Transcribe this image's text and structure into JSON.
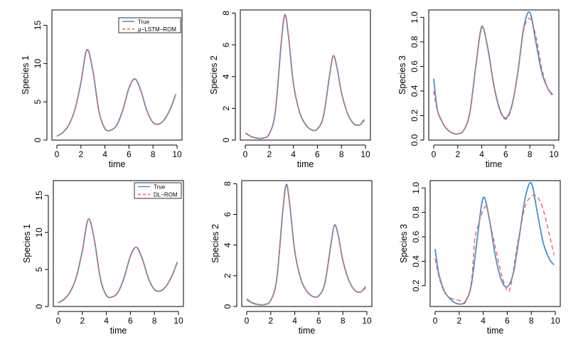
{
  "colors": {
    "true_line": "#4a90c8",
    "pred_line": "#f06060",
    "frame": "#000000"
  },
  "chart_data": [
    {
      "type": "line",
      "xlabel": "time",
      "ylabel": "Species 1",
      "xlim": [
        0,
        10
      ],
      "ylim": [
        0,
        17
      ],
      "xticks": [
        0,
        2,
        4,
        6,
        8,
        10
      ],
      "yticks": [
        0,
        5,
        10,
        15
      ],
      "legend": {
        "entries": [
          "True",
          "μ−LSTM−ROM"
        ],
        "position": "top-right"
      },
      "series": [
        {
          "name": "True",
          "style": "solid",
          "x": [
            0,
            0.5,
            1.0,
            1.5,
            2.0,
            2.5,
            3.0,
            3.5,
            4.0,
            4.5,
            5.0,
            5.5,
            6.0,
            6.5,
            7.0,
            7.5,
            8.0,
            8.5,
            9.0,
            9.5,
            9.9
          ],
          "y": [
            0.5,
            1.0,
            2.0,
            4.0,
            7.5,
            11.8,
            9.0,
            3.8,
            1.5,
            1.3,
            2.0,
            4.0,
            6.8,
            8.0,
            6.4,
            3.8,
            2.3,
            2.1,
            2.8,
            4.3,
            6.0
          ]
        },
        {
          "name": "μ−LSTM−ROM",
          "style": "dashed",
          "x": [
            0,
            0.5,
            1.0,
            1.5,
            2.0,
            2.5,
            3.0,
            3.5,
            4.0,
            4.5,
            5.0,
            5.5,
            6.0,
            6.5,
            7.0,
            7.5,
            8.0,
            8.5,
            9.0,
            9.5,
            9.9
          ],
          "y": [
            0.5,
            1.0,
            2.0,
            4.0,
            7.5,
            11.8,
            9.0,
            3.8,
            1.5,
            1.3,
            2.0,
            4.0,
            6.8,
            8.0,
            6.4,
            3.8,
            2.3,
            2.1,
            2.8,
            4.3,
            6.0
          ]
        }
      ]
    },
    {
      "type": "line",
      "xlabel": "time",
      "ylabel": "Species 2",
      "xlim": [
        0,
        10
      ],
      "ylim": [
        0,
        8.2
      ],
      "xticks": [
        0,
        2,
        4,
        6,
        8,
        10
      ],
      "yticks": [
        0,
        2,
        4,
        6,
        8
      ],
      "series": [
        {
          "name": "True",
          "style": "solid",
          "x": [
            0,
            0.5,
            1.0,
            1.5,
            2.0,
            2.5,
            3.0,
            3.3,
            3.6,
            4.0,
            4.5,
            5.0,
            5.5,
            6.0,
            6.5,
            7.0,
            7.3,
            7.6,
            8.0,
            8.5,
            9.0,
            9.5,
            9.9
          ],
          "y": [
            0.45,
            0.22,
            0.12,
            0.13,
            0.4,
            1.8,
            6.2,
            7.9,
            6.5,
            3.6,
            1.8,
            1.0,
            0.65,
            0.7,
            1.5,
            4.0,
            5.3,
            4.7,
            3.0,
            1.7,
            1.05,
            0.95,
            1.3
          ]
        },
        {
          "name": "μ−LSTM−ROM",
          "style": "dashed",
          "x": [
            0,
            0.5,
            1.0,
            1.5,
            2.0,
            2.5,
            3.0,
            3.3,
            3.6,
            4.0,
            4.5,
            5.0,
            5.5,
            6.0,
            6.5,
            7.0,
            7.3,
            7.6,
            8.0,
            8.5,
            9.0,
            9.5,
            9.9
          ],
          "y": [
            0.45,
            0.22,
            0.12,
            0.13,
            0.4,
            1.8,
            6.2,
            7.9,
            6.5,
            3.6,
            1.8,
            1.0,
            0.65,
            0.7,
            1.5,
            4.0,
            5.3,
            4.7,
            3.0,
            1.7,
            1.05,
            0.95,
            1.2
          ]
        }
      ]
    },
    {
      "type": "line",
      "xlabel": "time",
      "ylabel": "Species 3",
      "xlim": [
        0,
        10
      ],
      "ylim": [
        0,
        1.06
      ],
      "xticks": [
        0,
        2,
        4,
        6,
        8,
        10
      ],
      "yticks": [
        0.0,
        0.2,
        0.4,
        0.6,
        0.8,
        1.0
      ],
      "ytick_labels": [
        "0.0",
        "0.2",
        "0.4",
        "0.6",
        "0.8",
        "1.0"
      ],
      "series": [
        {
          "name": "True",
          "style": "solid",
          "x": [
            0,
            0.3,
            0.7,
            1.0,
            1.5,
            2.0,
            2.5,
            3.0,
            3.5,
            4.0,
            4.5,
            5.0,
            5.5,
            6.0,
            6.5,
            7.0,
            7.5,
            8.0,
            8.5,
            9.0,
            9.5,
            9.9
          ],
          "y": [
            0.5,
            0.25,
            0.15,
            0.1,
            0.06,
            0.05,
            0.08,
            0.22,
            0.6,
            0.92,
            0.75,
            0.45,
            0.25,
            0.18,
            0.28,
            0.55,
            0.92,
            1.04,
            0.8,
            0.55,
            0.42,
            0.37
          ]
        },
        {
          "name": "μ−LSTM−ROM",
          "style": "dashed",
          "x": [
            0,
            0.3,
            0.7,
            1.0,
            1.5,
            2.0,
            2.5,
            3.0,
            3.5,
            4.0,
            4.5,
            5.0,
            5.5,
            6.0,
            6.5,
            7.0,
            7.5,
            8.0,
            8.5,
            9.0,
            9.5,
            9.9
          ],
          "y": [
            0.4,
            0.24,
            0.15,
            0.1,
            0.06,
            0.05,
            0.08,
            0.22,
            0.6,
            0.93,
            0.74,
            0.44,
            0.24,
            0.17,
            0.27,
            0.55,
            0.9,
            0.99,
            0.85,
            0.58,
            0.42,
            0.36
          ]
        }
      ]
    },
    {
      "type": "line",
      "xlabel": "time",
      "ylabel": "Species 1",
      "xlim": [
        0,
        10
      ],
      "ylim": [
        0,
        17
      ],
      "xticks": [
        0,
        2,
        4,
        6,
        8,
        10
      ],
      "yticks": [
        0,
        5,
        10,
        15
      ],
      "legend": {
        "entries": [
          "True",
          "DL−ROM"
        ],
        "position": "top-right"
      },
      "series": [
        {
          "name": "True",
          "style": "solid",
          "x": [
            0,
            0.5,
            1.0,
            1.5,
            2.0,
            2.5,
            3.0,
            3.5,
            4.0,
            4.5,
            5.0,
            5.5,
            6.0,
            6.5,
            7.0,
            7.5,
            8.0,
            8.5,
            9.0,
            9.5,
            9.9
          ],
          "y": [
            0.5,
            1.0,
            2.0,
            4.0,
            7.5,
            11.8,
            9.0,
            3.8,
            1.5,
            1.3,
            2.0,
            4.0,
            6.8,
            8.0,
            6.4,
            3.8,
            2.3,
            2.1,
            2.8,
            4.3,
            6.0
          ]
        },
        {
          "name": "DL−ROM",
          "style": "dashed",
          "x": [
            0,
            0.5,
            1.0,
            1.5,
            2.0,
            2.5,
            3.0,
            3.5,
            4.0,
            4.5,
            5.0,
            5.5,
            6.0,
            6.5,
            7.0,
            7.5,
            8.0,
            8.5,
            9.0,
            9.5,
            9.9
          ],
          "y": [
            0.5,
            1.0,
            2.0,
            4.0,
            7.5,
            11.8,
            9.0,
            3.8,
            1.5,
            1.3,
            2.0,
            4.0,
            6.8,
            8.0,
            6.4,
            3.8,
            2.3,
            2.1,
            2.8,
            4.3,
            6.0
          ]
        }
      ]
    },
    {
      "type": "line",
      "xlabel": "time",
      "ylabel": "Species 2",
      "xlim": [
        0,
        10
      ],
      "ylim": [
        0,
        8.2
      ],
      "xticks": [
        0,
        2,
        4,
        6,
        8,
        10
      ],
      "yticks": [
        0,
        2,
        4,
        6,
        8
      ],
      "series": [
        {
          "name": "True",
          "style": "solid",
          "x": [
            0,
            0.5,
            1.0,
            1.5,
            2.0,
            2.5,
            3.0,
            3.3,
            3.6,
            4.0,
            4.5,
            5.0,
            5.5,
            6.0,
            6.5,
            7.0,
            7.3,
            7.6,
            8.0,
            8.5,
            9.0,
            9.5,
            9.9
          ],
          "y": [
            0.45,
            0.22,
            0.12,
            0.13,
            0.4,
            1.8,
            6.2,
            7.95,
            6.5,
            3.6,
            1.8,
            1.0,
            0.65,
            0.7,
            1.5,
            4.0,
            5.3,
            4.7,
            3.0,
            1.7,
            1.05,
            0.95,
            1.3
          ]
        },
        {
          "name": "DL−ROM",
          "style": "dashed",
          "x": [
            0,
            0.5,
            1.0,
            1.5,
            2.0,
            2.5,
            3.0,
            3.3,
            3.6,
            4.0,
            4.5,
            5.0,
            5.5,
            6.0,
            6.5,
            7.0,
            7.3,
            7.6,
            8.0,
            8.5,
            9.0,
            9.5,
            9.9
          ],
          "y": [
            0.5,
            0.25,
            0.13,
            0.13,
            0.4,
            1.8,
            6.2,
            7.9,
            6.5,
            3.6,
            1.8,
            1.0,
            0.65,
            0.7,
            1.5,
            4.0,
            5.25,
            4.7,
            3.0,
            1.7,
            1.05,
            0.95,
            1.2
          ]
        }
      ]
    },
    {
      "type": "line",
      "xlabel": "time",
      "ylabel": "Species 3",
      "xlim": [
        0,
        10
      ],
      "ylim": [
        0.03,
        1.06
      ],
      "xticks": [
        0,
        2,
        4,
        6,
        8,
        10
      ],
      "yticks": [
        0.2,
        0.4,
        0.6,
        0.8,
        1.0
      ],
      "ytick_labels": [
        "0.2",
        "0.4",
        "0.6",
        "0.8",
        "1.0"
      ],
      "series": [
        {
          "name": "True",
          "style": "solid",
          "x": [
            0,
            0.3,
            0.7,
            1.0,
            1.5,
            2.0,
            2.5,
            3.0,
            3.5,
            4.0,
            4.5,
            5.0,
            5.5,
            6.0,
            6.5,
            7.0,
            7.5,
            8.0,
            8.5,
            9.0,
            9.5,
            9.9
          ],
          "y": [
            0.5,
            0.3,
            0.17,
            0.12,
            0.07,
            0.05,
            0.07,
            0.2,
            0.58,
            0.92,
            0.75,
            0.45,
            0.25,
            0.19,
            0.3,
            0.6,
            0.92,
            1.04,
            0.8,
            0.55,
            0.42,
            0.37
          ]
        },
        {
          "name": "DL−ROM",
          "style": "dashed",
          "x": [
            0,
            0.3,
            0.7,
            1.0,
            1.5,
            2.0,
            2.5,
            3.0,
            3.3,
            3.6,
            4.0,
            4.3,
            4.6,
            5.0,
            5.5,
            6.0,
            6.3,
            6.7,
            7.0,
            7.5,
            8.0,
            8.5,
            9.0,
            9.5,
            9.9
          ],
          "y": [
            0.42,
            0.28,
            0.16,
            0.12,
            0.09,
            0.08,
            0.06,
            0.22,
            0.58,
            0.7,
            0.82,
            0.84,
            0.7,
            0.52,
            0.3,
            0.16,
            0.2,
            0.45,
            0.62,
            0.85,
            0.93,
            0.93,
            0.82,
            0.62,
            0.45
          ]
        }
      ]
    }
  ]
}
